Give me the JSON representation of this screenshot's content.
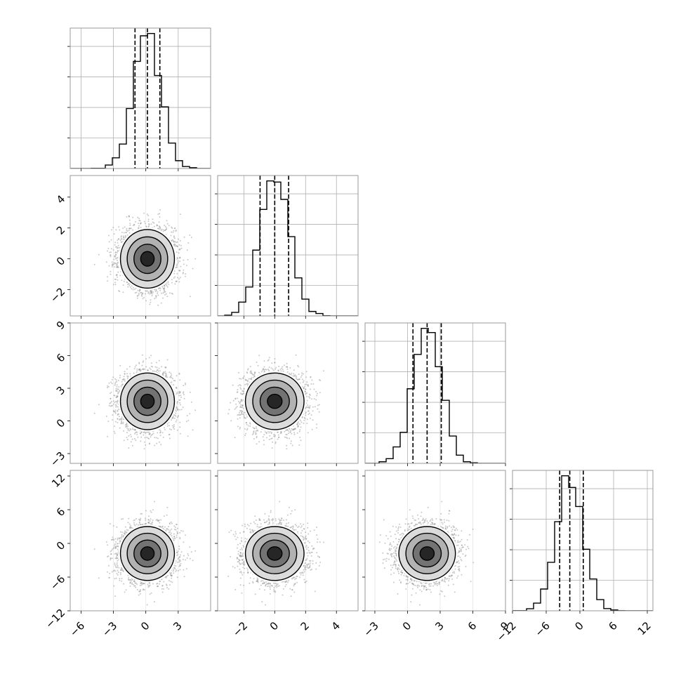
{
  "chart_data": {
    "type": "corner",
    "n_params": 4,
    "params": [
      {
        "ticks": [
          -6,
          -3,
          0,
          3
        ],
        "ticks_y": [],
        "range": [
          -7.0,
          6.0
        ],
        "mean": 0.15,
        "sd": 1.25,
        "quantiles": [
          -1.0,
          0.15,
          1.3
        ]
      },
      {
        "ticks": [
          -2,
          0,
          2,
          4
        ],
        "ticks_y": [
          -2,
          0,
          2,
          4
        ],
        "range": [
          -3.7,
          5.4
        ],
        "mean": 0.0,
        "sd": 0.95,
        "quantiles": [
          -0.95,
          0.0,
          0.9
        ]
      },
      {
        "ticks": [
          -3,
          0,
          3,
          6,
          9
        ],
        "ticks_y": [
          -3,
          0,
          3,
          6,
          9
        ],
        "range": [
          -3.9,
          9.0
        ],
        "mean": 1.8,
        "sd": 1.3,
        "quantiles": [
          0.5,
          1.8,
          3.1
        ]
      },
      {
        "ticks": [
          -12,
          -6,
          0,
          6,
          12
        ],
        "ticks_y": [
          -12,
          -6,
          0,
          6,
          12
        ],
        "range": [
          -12.0,
          13.0
        ],
        "mean": -1.8,
        "sd": 2.4,
        "quantiles": [
          -3.6,
          -1.8,
          0.6
        ]
      }
    ],
    "contour_levels_sigma": [
      0.5,
      1.0,
      1.5,
      2.0
    ],
    "n_samples": 4000,
    "grid": true,
    "colors": {
      "ink": "#000000",
      "grid": "#b0b0b0",
      "points": "#888888"
    }
  }
}
